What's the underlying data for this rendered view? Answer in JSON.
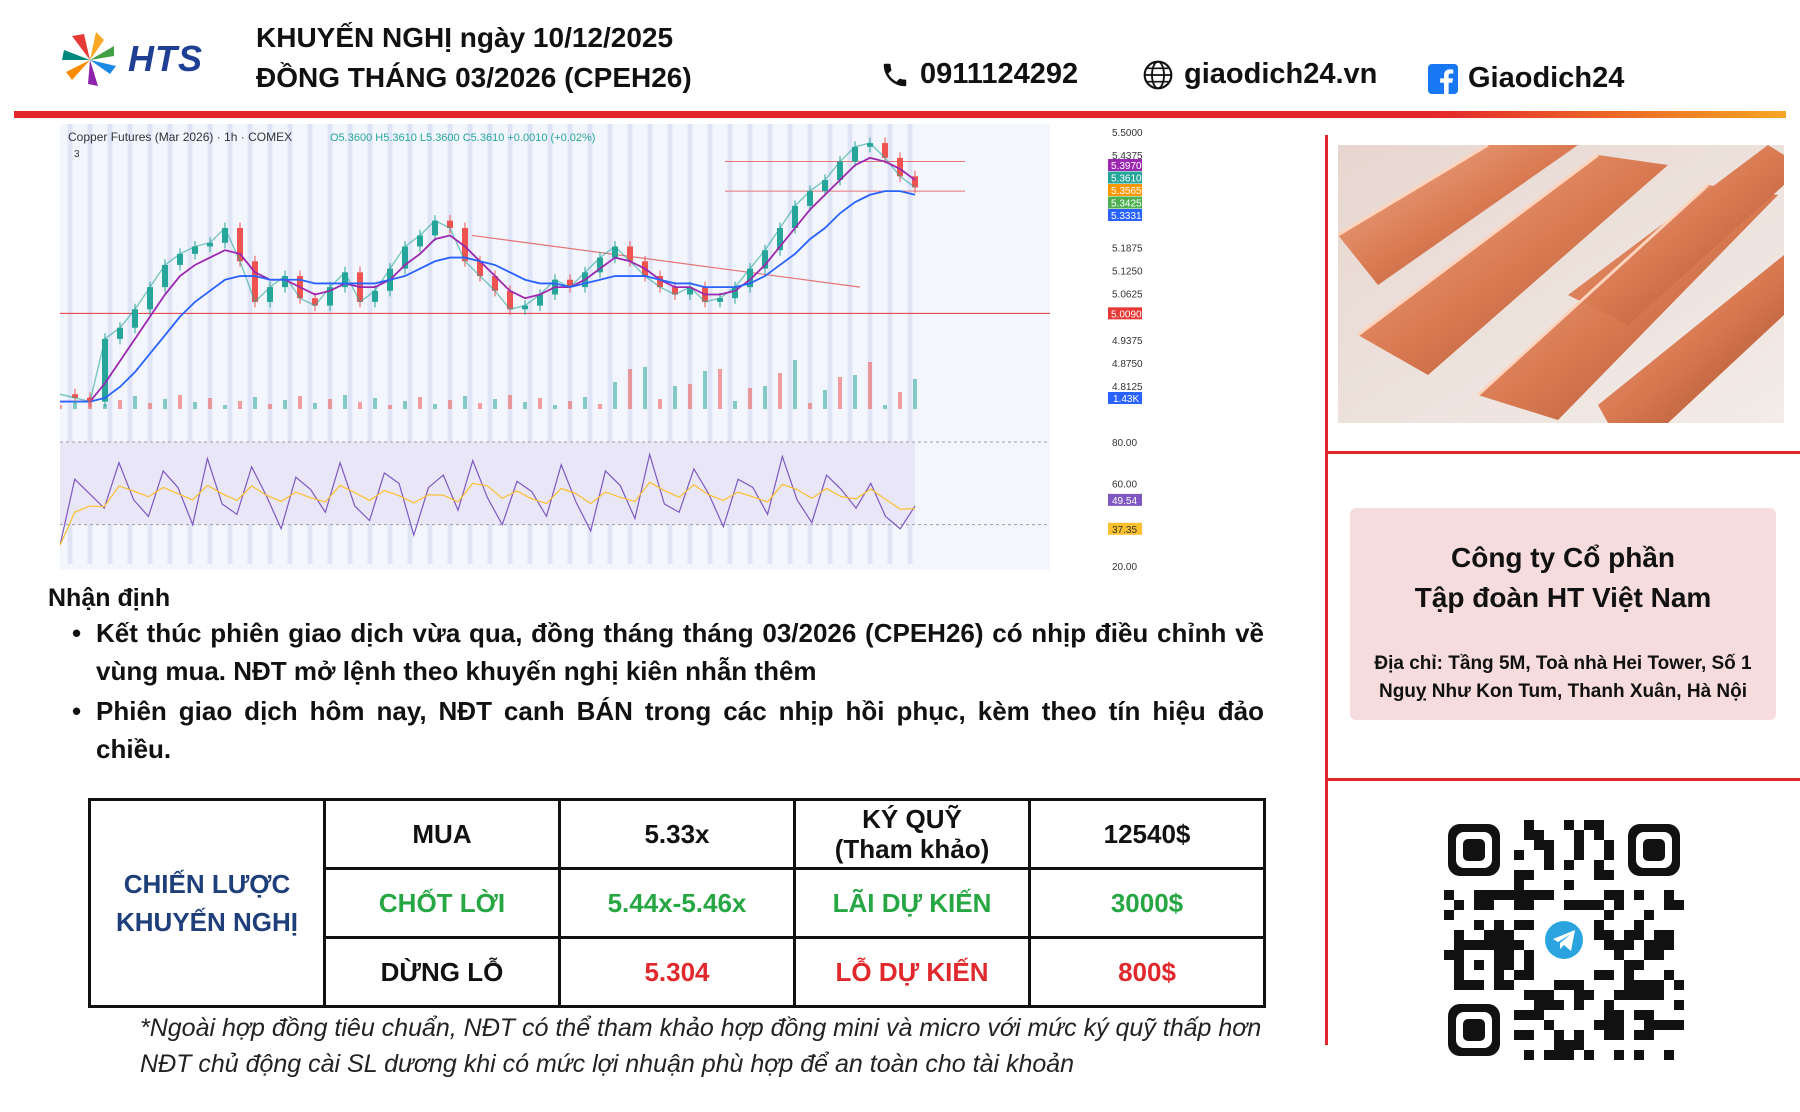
{
  "brand": {
    "name": "HTS"
  },
  "header": {
    "title_line1": "KHUYẾN NGHỊ ngày 10/12/2025",
    "title_line2": "ĐỒNG THÁNG 03/2026 (CPEH26)",
    "phone": "0911124292",
    "website": "giaodich24.vn",
    "facebook": "Giaodich24",
    "accent_red": "#e3262a",
    "accent_orange": "#f5a623"
  },
  "chart_data": {
    "type": "line",
    "title": "Copper Futures (Mar 2026) · 1h · COMEX",
    "ohlc_text": "O5.3600 H5.3610 L5.3600 C5.3610 +0.0010 (+0.02%)",
    "indicator_count": "3",
    "ylim": [
      4.75,
      5.5
    ],
    "y_ticks": [
      "5.5000",
      "5.4375",
      "5.1875",
      "5.1250",
      "5.0625",
      "4.9375",
      "4.8750",
      "4.8125"
    ],
    "price_tags": [
      {
        "label": "5.3970",
        "value": 5.397,
        "color": "#9c27b0"
      },
      {
        "label": "5.3610",
        "value": 5.361,
        "color": "#26a69a"
      },
      {
        "label": "5.3565",
        "value": 5.3565,
        "color": "#ff9800"
      },
      {
        "label": "5.3425",
        "value": 5.3425,
        "color": "#4caf50"
      },
      {
        "label": "5.3331",
        "value": 5.3331,
        "color": "#2962ff"
      },
      {
        "label": "5.0090",
        "value": 5.009,
        "color": "#e53935"
      }
    ],
    "support_line": 5.009,
    "upper_band": [
      5.42,
      5.34
    ],
    "volume_tag": "1.43K",
    "rsi_ticks": [
      "80.00",
      "60.00",
      "20.00"
    ],
    "rsi_tags": [
      {
        "label": "49.54",
        "color": "#7e57c2"
      },
      {
        "label": "37.35",
        "color": "#fbc02d"
      }
    ],
    "series": [
      {
        "values": [
          4.79,
          4.78,
          4.77,
          4.94,
          4.97,
          5.02,
          5.08,
          5.14,
          5.17,
          5.19,
          5.2,
          5.24,
          5.15,
          5.04,
          5.08,
          5.11,
          5.05,
          5.03,
          5.08,
          5.12,
          5.04,
          5.07,
          5.13,
          5.19,
          5.22,
          5.26,
          5.24,
          5.15,
          5.11,
          5.07,
          5.02,
          5.03,
          5.06,
          5.1,
          5.08,
          5.12,
          5.16,
          5.19,
          5.15,
          5.11,
          5.08,
          5.06,
          5.08,
          5.04,
          5.05,
          5.08,
          5.13,
          5.18,
          5.24,
          5.3,
          5.34,
          5.37,
          5.42,
          5.46,
          5.47,
          5.43,
          5.38,
          5.35
        ]
      },
      {
        "values": [
          4.77,
          4.77,
          4.77,
          4.82,
          4.88,
          4.94,
          5.0,
          5.06,
          5.11,
          5.14,
          5.16,
          5.18,
          5.17,
          5.12,
          5.1,
          5.1,
          5.08,
          5.06,
          5.07,
          5.09,
          5.08,
          5.08,
          5.1,
          5.14,
          5.17,
          5.21,
          5.22,
          5.19,
          5.15,
          5.11,
          5.07,
          5.05,
          5.06,
          5.08,
          5.08,
          5.1,
          5.13,
          5.16,
          5.15,
          5.13,
          5.1,
          5.08,
          5.08,
          5.06,
          5.06,
          5.07,
          5.1,
          5.14,
          5.19,
          5.24,
          5.29,
          5.33,
          5.37,
          5.41,
          5.43,
          5.42,
          5.4,
          5.37
        ]
      },
      {
        "values": [
          4.77,
          4.77,
          4.77,
          4.78,
          4.81,
          4.85,
          4.9,
          4.95,
          5.0,
          5.04,
          5.07,
          5.1,
          5.11,
          5.11,
          5.1,
          5.1,
          5.1,
          5.09,
          5.09,
          5.09,
          5.09,
          5.09,
          5.1,
          5.11,
          5.13,
          5.15,
          5.16,
          5.16,
          5.15,
          5.14,
          5.12,
          5.1,
          5.09,
          5.09,
          5.08,
          5.09,
          5.1,
          5.11,
          5.11,
          5.11,
          5.1,
          5.09,
          5.09,
          5.08,
          5.08,
          5.08,
          5.09,
          5.11,
          5.14,
          5.17,
          5.21,
          5.24,
          5.28,
          5.31,
          5.33,
          5.34,
          5.34,
          5.33
        ]
      }
    ],
    "rsi": [
      30,
      62,
      55,
      48,
      70,
      52,
      44,
      66,
      58,
      40,
      72,
      50,
      45,
      68,
      54,
      38,
      63,
      57,
      46,
      70,
      49,
      42,
      65,
      60,
      35,
      58,
      64,
      47,
      71,
      53,
      40,
      61,
      56,
      44,
      69,
      51,
      37,
      66,
      59,
      43,
      74,
      50,
      46,
      67,
      55,
      39,
      62,
      58,
      45,
      73,
      52,
      41,
      64,
      57,
      48,
      60,
      44,
      38,
      49
    ]
  },
  "commentary": {
    "heading": "Nhận định",
    "bullet1": "Kết thúc phiên giao dịch vừa qua, đồng tháng tháng 03/2026 (CPEH26) có nhịp điều chỉnh về vùng mua. NĐT mở lệnh theo khuyến nghị kiên nhẫn thêm",
    "bullet2": "Phiên giao dịch hôm nay, NĐT canh BÁN trong các nhịp hồi phục, kèm theo tín hiệu đảo chiều.",
    "bullet_symbol": "•"
  },
  "strategy": {
    "label_line1": "CHIẾN LƯỢC",
    "label_line2": "KHUYẾN NGHỊ",
    "row1": [
      "MUA",
      "5.33x",
      "KÝ QUỸ",
      "(Tham khảo)",
      "12540$"
    ],
    "row2": [
      "CHỐT LỜI",
      "5.44x-5.46x",
      "LÃI DỰ KIẾN",
      "3000$"
    ],
    "row3": [
      "DỪNG LỖ",
      "5.304",
      "LỖ DỰ KIẾN",
      "800$"
    ]
  },
  "notes": {
    "line1": "*Ngoài hợp đồng tiêu chuẩn, NĐT có thể tham khảo hợp đồng mini và micro với mức ký quỹ thấp hơn",
    "line2": "NĐT chủ động cài SL dương khi có mức lợi nhuận phù hợp để an toàn cho tài khoản"
  },
  "company": {
    "name_line1": "Công ty Cổ phần",
    "name_line2": "Tập đoàn HT Việt Nam",
    "address_line1": "Địa chỉ: Tầng 5M, Toà nhà Hei Tower, Số 1",
    "address_line2": "Nguỵ Như Kon Tum, Thanh Xuân, Hà Nội"
  },
  "qr": {
    "center_icon": "telegram-icon"
  }
}
